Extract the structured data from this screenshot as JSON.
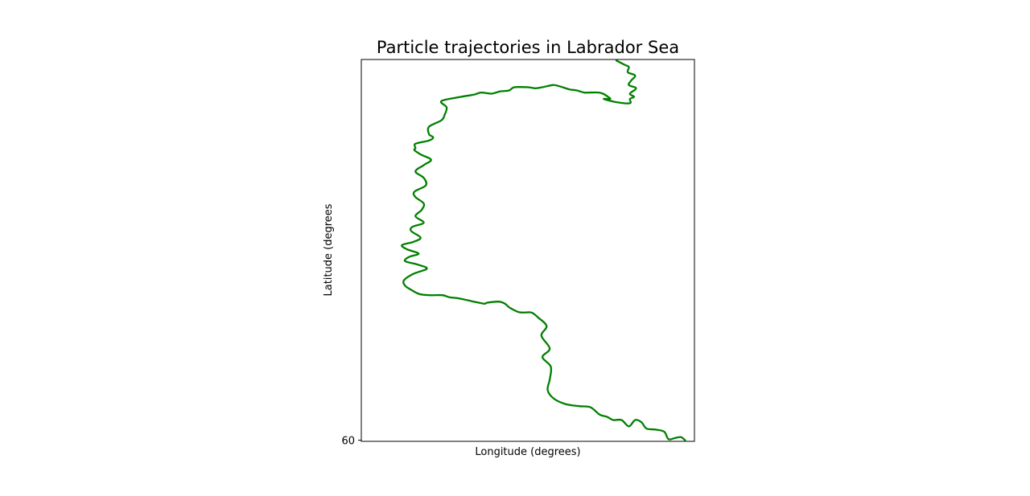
{
  "chart_data": {
    "type": "line",
    "title": "Particle trajectories in Labrador Sea",
    "xlabel": "Longitude (degrees)",
    "ylabel": "Latitude (degrees",
    "y_ticks": [
      {
        "value": 60,
        "label": "60"
      }
    ],
    "grid": false,
    "legend": "none",
    "series": [
      {
        "color": "#008000",
        "points": [
          [
            -55.89,
            60.0
          ],
          [
            -55.93,
            60.03
          ],
          [
            -55.99,
            60.02
          ],
          [
            -56.05,
            60.01
          ],
          [
            -56.09,
            60.08
          ],
          [
            -56.17,
            60.1
          ],
          [
            -56.26,
            60.11
          ],
          [
            -56.31,
            60.17
          ],
          [
            -56.37,
            60.19
          ],
          [
            -56.43,
            60.13
          ],
          [
            -56.5,
            60.19
          ],
          [
            -56.58,
            60.19
          ],
          [
            -56.64,
            60.22
          ],
          [
            -56.71,
            60.24
          ],
          [
            -56.8,
            60.31
          ],
          [
            -56.91,
            60.32
          ],
          [
            -57.04,
            60.34
          ],
          [
            -57.15,
            60.39
          ],
          [
            -57.21,
            60.47
          ],
          [
            -57.19,
            60.57
          ],
          [
            -57.18,
            60.69
          ],
          [
            -57.26,
            60.78
          ],
          [
            -57.19,
            60.86
          ],
          [
            -57.27,
            60.98
          ],
          [
            -57.22,
            61.07
          ],
          [
            -57.3,
            61.15
          ],
          [
            -57.35,
            61.19
          ],
          [
            -57.38,
            61.2
          ],
          [
            -57.48,
            61.2
          ],
          [
            -57.57,
            61.24
          ],
          [
            -57.62,
            61.28
          ],
          [
            -57.68,
            61.3
          ],
          [
            -57.79,
            61.29
          ],
          [
            -57.82,
            61.28
          ],
          [
            -57.92,
            61.3
          ],
          [
            -58.06,
            61.33
          ],
          [
            -58.15,
            61.34
          ],
          [
            -58.22,
            61.36
          ],
          [
            -58.34,
            61.36
          ],
          [
            -58.44,
            61.37
          ],
          [
            -58.52,
            61.41
          ],
          [
            -58.58,
            61.45
          ],
          [
            -58.59,
            61.5
          ],
          [
            -58.5,
            61.56
          ],
          [
            -58.37,
            61.61
          ],
          [
            -58.47,
            61.65
          ],
          [
            -58.58,
            61.68
          ],
          [
            -58.54,
            61.72
          ],
          [
            -58.45,
            61.75
          ],
          [
            -58.56,
            61.79
          ],
          [
            -58.61,
            61.83
          ],
          [
            -58.5,
            61.86
          ],
          [
            -58.43,
            61.9
          ],
          [
            -58.52,
            61.96
          ],
          [
            -58.51,
            62.0
          ],
          [
            -58.4,
            62.04
          ],
          [
            -58.48,
            62.1
          ],
          [
            -58.42,
            62.16
          ],
          [
            -58.4,
            62.22
          ],
          [
            -58.48,
            62.28
          ],
          [
            -58.49,
            62.33
          ],
          [
            -58.38,
            62.39
          ],
          [
            -58.4,
            62.46
          ],
          [
            -58.48,
            62.52
          ],
          [
            -58.4,
            62.58
          ],
          [
            -58.33,
            62.63
          ],
          [
            -58.43,
            62.68
          ],
          [
            -58.49,
            62.72
          ],
          [
            -58.48,
            62.74
          ],
          [
            -58.48,
            62.78
          ],
          [
            -58.35,
            62.81
          ],
          [
            -58.31,
            62.84
          ],
          [
            -58.35,
            62.87
          ],
          [
            -58.35,
            62.94
          ],
          [
            -58.23,
            63.0
          ],
          [
            -58.2,
            63.05
          ],
          [
            -58.18,
            63.12
          ],
          [
            -58.23,
            63.18
          ],
          [
            -58.04,
            63.22
          ],
          [
            -57.92,
            63.24
          ],
          [
            -57.85,
            63.26
          ],
          [
            -57.75,
            63.25
          ],
          [
            -57.67,
            63.27
          ],
          [
            -57.58,
            63.28
          ],
          [
            -57.53,
            63.31
          ],
          [
            -57.4,
            63.31
          ],
          [
            -57.33,
            63.3
          ],
          [
            -57.26,
            63.31
          ],
          [
            -57.16,
            63.33
          ],
          [
            -57.1,
            63.32
          ],
          [
            -57.0,
            63.29
          ],
          [
            -56.93,
            63.28
          ],
          [
            -56.86,
            63.26
          ],
          [
            -56.81,
            63.26
          ],
          [
            -56.72,
            63.26
          ],
          [
            -56.68,
            63.25
          ],
          [
            -56.63,
            63.22
          ],
          [
            -56.61,
            63.2
          ],
          [
            -56.67,
            63.2
          ],
          [
            -56.55,
            63.17
          ],
          [
            -56.42,
            63.16
          ],
          [
            -56.42,
            63.2
          ],
          [
            -56.38,
            63.22
          ],
          [
            -56.42,
            63.25
          ],
          [
            -56.36,
            63.3
          ],
          [
            -56.43,
            63.33
          ],
          [
            -56.41,
            63.37
          ],
          [
            -56.37,
            63.42
          ],
          [
            -56.44,
            63.45
          ],
          [
            -56.43,
            63.5
          ],
          [
            -56.47,
            63.52
          ],
          [
            -56.55,
            63.56
          ]
        ]
      }
    ]
  }
}
